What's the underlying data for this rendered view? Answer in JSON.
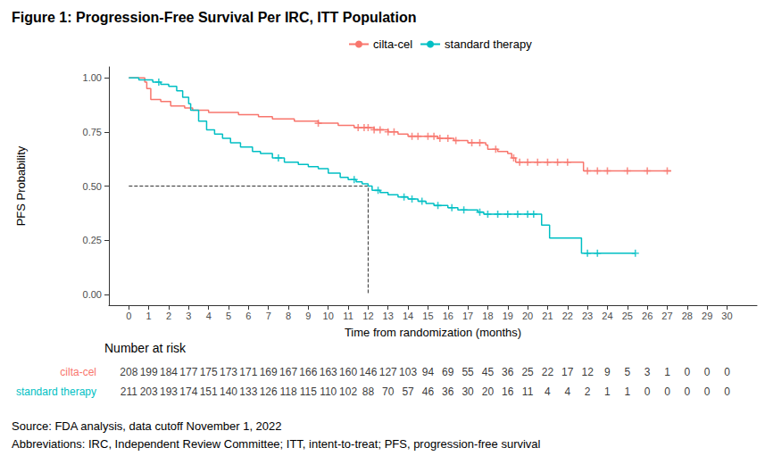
{
  "chart_data": {
    "type": "step",
    "title": "Figure 1: Progression-Free Survival Per IRC, ITT Population",
    "x_label": "Time from randomization (months)",
    "y_label": "PFS Probability",
    "xlim": [
      -1,
      31.5
    ],
    "ylim": [
      -0.05,
      1.05
    ],
    "xticks": [
      0,
      1,
      2,
      3,
      4,
      5,
      6,
      7,
      8,
      9,
      10,
      11,
      12,
      13,
      14,
      15,
      16,
      17,
      18,
      19,
      20,
      21,
      22,
      23,
      24,
      25,
      26,
      27,
      28,
      29,
      30
    ],
    "yticks": [
      {
        "value": 0,
        "label": "0.00"
      },
      {
        "value": 0.25,
        "label": "0.25"
      },
      {
        "value": 0.5,
        "label": "0.50"
      },
      {
        "value": 0.75,
        "label": "0.75"
      },
      {
        "value": 1,
        "label": "1.00"
      }
    ],
    "grid": false,
    "legend": "top",
    "series": [
      {
        "name": "cilta-cel",
        "color": "#F8766D",
        "line_style": "solid",
        "marker": "plus",
        "x": [
          0,
          0.8,
          0.9,
          1.1,
          1.6,
          2.1,
          2.8,
          3.2,
          4.0,
          5.5,
          6.5,
          7.2,
          8.3,
          9.5,
          10.5,
          11.3,
          12.3,
          13.0,
          13.5,
          14.0,
          15.5,
          16.3,
          17.0,
          17.9,
          18.0,
          18.5,
          19.0,
          19.2,
          19.4,
          22.8,
          27.2
        ],
        "values": [
          1,
          0.98,
          0.95,
          0.9,
          0.89,
          0.87,
          0.86,
          0.85,
          0.84,
          0.83,
          0.82,
          0.81,
          0.8,
          0.79,
          0.78,
          0.77,
          0.76,
          0.75,
          0.74,
          0.73,
          0.72,
          0.71,
          0.7,
          0.69,
          0.67,
          0.66,
          0.65,
          0.63,
          0.61,
          0.57,
          0.57
        ],
        "censored_x": [
          9.5,
          11.5,
          11.8,
          12.0,
          12.3,
          12.6,
          13.0,
          13.3,
          14.2,
          14.5,
          15.0,
          15.3,
          15.6,
          16.0,
          16.4,
          17.2,
          17.6,
          18.4,
          19.3,
          19.6,
          20.0,
          20.5,
          21.0,
          21.5,
          22.0,
          23.0,
          23.5,
          24.0,
          25.0,
          26.0,
          27.0
        ],
        "censored_values": [
          0.79,
          0.77,
          0.77,
          0.77,
          0.76,
          0.76,
          0.75,
          0.75,
          0.73,
          0.73,
          0.73,
          0.73,
          0.72,
          0.72,
          0.71,
          0.7,
          0.7,
          0.67,
          0.63,
          0.61,
          0.61,
          0.61,
          0.61,
          0.61,
          0.61,
          0.57,
          0.57,
          0.57,
          0.57,
          0.57,
          0.57
        ],
        "at_risk": [
          208,
          199,
          184,
          177,
          175,
          173,
          171,
          169,
          167,
          166,
          163,
          160,
          146,
          127,
          103,
          94,
          69,
          55,
          45,
          36,
          25,
          22,
          17,
          12,
          9,
          5,
          3,
          1,
          0,
          0,
          0
        ]
      },
      {
        "name": "standard therapy",
        "color": "#00BFC4",
        "line_style": "solid",
        "marker": "plus",
        "x": [
          0,
          0.5,
          1.2,
          1.6,
          2.0,
          2.4,
          2.7,
          3.0,
          3.1,
          3.5,
          3.9,
          4.3,
          4.7,
          5.1,
          5.6,
          6.2,
          6.6,
          7.2,
          7.8,
          8.5,
          9.0,
          9.5,
          10.0,
          10.6,
          11.0,
          11.4,
          11.7,
          12.0,
          12.2,
          12.6,
          13.0,
          13.5,
          14.0,
          14.5,
          14.9,
          15.3,
          16.0,
          16.5,
          17.5,
          17.8,
          20.7,
          21.1,
          22.7,
          25.4
        ],
        "values": [
          1,
          0.99,
          0.98,
          0.97,
          0.96,
          0.94,
          0.91,
          0.88,
          0.85,
          0.8,
          0.76,
          0.74,
          0.72,
          0.7,
          0.68,
          0.66,
          0.65,
          0.63,
          0.61,
          0.6,
          0.59,
          0.58,
          0.56,
          0.54,
          0.53,
          0.52,
          0.51,
          0.5,
          0.48,
          0.47,
          0.46,
          0.45,
          0.44,
          0.43,
          0.42,
          0.41,
          0.4,
          0.39,
          0.38,
          0.37,
          0.32,
          0.26,
          0.19,
          0.19
        ],
        "censored_x": [
          1.5,
          7.5,
          11.3,
          12.5,
          13.8,
          14.2,
          14.7,
          15.5,
          16.2,
          16.8,
          17.6,
          18.0,
          18.5,
          19.0,
          19.5,
          20.0,
          20.3,
          23.0,
          23.5,
          25.4
        ],
        "censored_values": [
          0.98,
          0.63,
          0.53,
          0.48,
          0.45,
          0.44,
          0.43,
          0.41,
          0.4,
          0.39,
          0.38,
          0.37,
          0.37,
          0.37,
          0.37,
          0.37,
          0.37,
          0.19,
          0.19,
          0.19
        ],
        "at_risk": [
          211,
          203,
          193,
          174,
          151,
          140,
          133,
          126,
          118,
          115,
          110,
          102,
          88,
          70,
          57,
          46,
          36,
          30,
          20,
          16,
          11,
          4,
          4,
          2,
          1,
          1,
          0,
          0,
          0,
          0,
          0
        ]
      }
    ],
    "median": {
      "x": 12,
      "y": 0.5,
      "line_style": "dashed"
    },
    "at_risk_title": "Number at risk",
    "notes": [
      "Source: FDA analysis, data cutoff November 1, 2022",
      "Abbreviations: IRC, Independent Review Committee; ITT, intent-to-treat; PFS, progression-free survival"
    ]
  }
}
